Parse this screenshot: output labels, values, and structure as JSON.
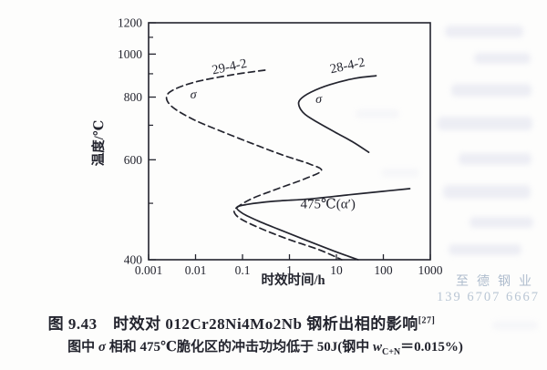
{
  "caption": {
    "figure_line": "图 9.43　时效对 012Cr28Ni4Mo2Nb 钢析出相的影响",
    "figure_ref": "[27]",
    "note_pre": "图中 ",
    "note_sigma": "σ",
    "note_mid": " 相和 475℃脆化区的冲击功均低于 50J(钢中 ",
    "note_w": "w",
    "note_sub": "C+N",
    "note_post": "＝0.015%)"
  },
  "watermark": {
    "company": "至德钢业",
    "phone": "139 6707 6667",
    "color": "#aebccd"
  },
  "ink_color": "#23242e",
  "chart_data": {
    "type": "line",
    "title": "",
    "xlabel": "时效时间/h",
    "ylabel": "温度/℃",
    "x_scale": "log10",
    "y_scale": "reciprocal-absolute-temperature",
    "xlim": [
      0.001,
      1000
    ],
    "ylim": [
      400,
      1200
    ],
    "grid": false,
    "x_ticks": [
      0.001,
      0.01,
      0.1,
      1,
      10,
      100,
      1000
    ],
    "x_tick_labels": [
      "0.001",
      "0.01",
      "0.1",
      "1",
      "10",
      "100",
      "1000"
    ],
    "y_major_ticks": [
      1200,
      1000,
      800,
      600,
      400
    ],
    "y_minor_ticks": [
      1100,
      900,
      700,
      500
    ],
    "series": [
      {
        "id": "29-4-2",
        "name": "29-4-2 (σ + 475℃ α′ embrittlement, dashed)",
        "line_style": "dashed",
        "points": [
          [
            0.3,
            917
          ],
          [
            0.06,
            895
          ],
          [
            0.01,
            863
          ],
          [
            0.0033,
            828
          ],
          [
            0.0024,
            798
          ],
          [
            0.0033,
            761
          ],
          [
            0.009,
            719
          ],
          [
            0.031,
            684
          ],
          [
            0.15,
            646
          ],
          [
            0.7,
            613
          ],
          [
            2.7,
            589
          ],
          [
            4.8,
            573
          ],
          [
            2.2,
            554
          ],
          [
            0.57,
            531
          ],
          [
            0.17,
            511
          ],
          [
            0.083,
            494
          ],
          [
            0.066,
            484
          ],
          [
            0.09,
            470
          ],
          [
            0.23,
            453
          ],
          [
            0.88,
            434
          ],
          [
            4.2,
            416
          ],
          [
            13,
            400
          ]
        ]
      },
      {
        "id": "28-4-2",
        "name": "28-4-2 (σ phase, solid)",
        "line_style": "solid",
        "points": [
          [
            70,
            891
          ],
          [
            25,
            879
          ],
          [
            7.2,
            851
          ],
          [
            2.9,
            820
          ],
          [
            1.7,
            791
          ],
          [
            1.6,
            767
          ],
          [
            2.1,
            738
          ],
          [
            3.9,
            710
          ],
          [
            9.4,
            678
          ],
          [
            23,
            648
          ],
          [
            49,
            620
          ]
        ]
      },
      {
        "id": "475-alpha-prime",
        "name": "475℃(α′) embrittlement zone (solid)",
        "line_style": "solid",
        "points": [
          [
            365,
            531
          ],
          [
            96,
            525
          ],
          [
            16,
            517
          ],
          [
            2.7,
            509
          ],
          [
            0.45,
            504
          ],
          [
            0.13,
            498
          ],
          [
            0.076,
            492
          ],
          [
            0.1,
            480
          ],
          [
            0.21,
            466
          ],
          [
            0.57,
            451
          ],
          [
            2.2,
            432
          ],
          [
            9.4,
            413
          ],
          [
            29,
            400
          ]
        ]
      }
    ],
    "annotations": [
      {
        "id": "label-29-4-2",
        "text": "29-4-2",
        "t": 0.055,
        "temp": 915,
        "rotation": -12,
        "class": "curve-label"
      },
      {
        "id": "label-28-4-2",
        "text": "28-4-2",
        "t": 18,
        "temp": 920,
        "rotation": -12,
        "class": "curve-label"
      },
      {
        "id": "sigma-dashed",
        "text": "σ",
        "t": 0.009,
        "temp": 795,
        "rotation": 0,
        "class": "sigma-label"
      },
      {
        "id": "sigma-solid",
        "text": "σ",
        "t": 4.2,
        "temp": 777,
        "rotation": 0,
        "class": "sigma-label"
      },
      {
        "id": "label-475",
        "text": "475℃(α′)",
        "t": 6.6,
        "temp": 490,
        "rotation": 0,
        "class": "zone-label"
      }
    ]
  }
}
